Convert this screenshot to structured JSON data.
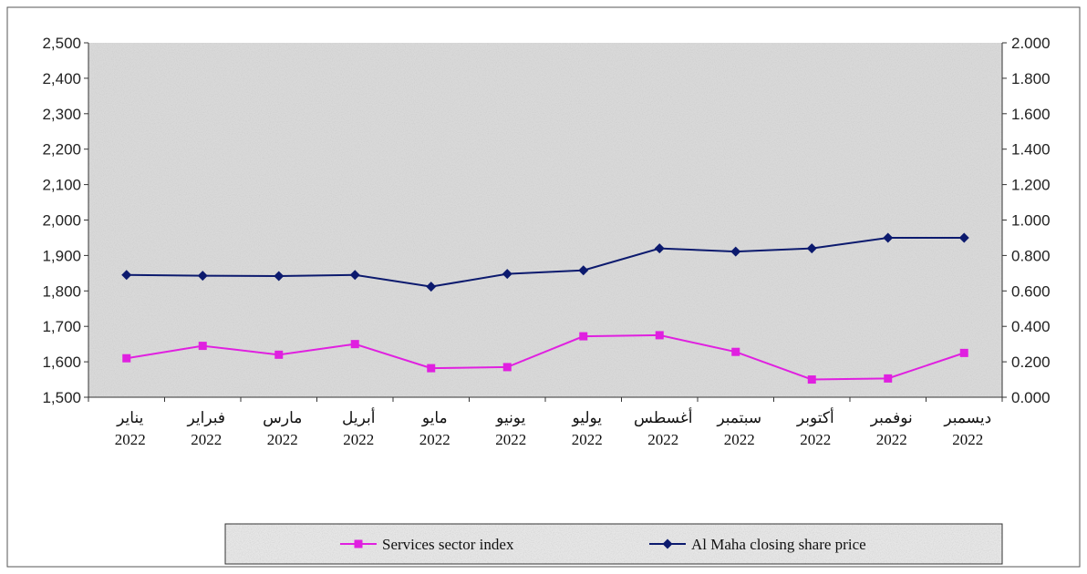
{
  "chart_data": {
    "type": "line",
    "categories": [
      [
        "يناير",
        "2022"
      ],
      [
        "فبراير",
        "2022"
      ],
      [
        "مارس",
        "2022"
      ],
      [
        "أبريل",
        "2022"
      ],
      [
        "مايو",
        "2022"
      ],
      [
        "يونيو",
        "2022"
      ],
      [
        "يوليو",
        "2022"
      ],
      [
        "أغسطس",
        "2022"
      ],
      [
        "سبتمبر",
        "2022"
      ],
      [
        "أكتوبر",
        "2022"
      ],
      [
        "نوفمبر",
        "2022"
      ],
      [
        "ديسمبر",
        "2022"
      ]
    ],
    "y_left": {
      "range": [
        1500,
        2500
      ],
      "ticks": [
        "1,500",
        "1,600",
        "1,700",
        "1,800",
        "1,900",
        "2,000",
        "2,100",
        "2,200",
        "2,300",
        "2,400",
        "2,500"
      ]
    },
    "y_right": {
      "range": [
        0,
        2
      ],
      "ticks": [
        "0.000",
        "0.200",
        "0.400",
        "0.600",
        "0.800",
        "1.000",
        "1.200",
        "1.400",
        "1.600",
        "1.800",
        "2.000"
      ]
    },
    "series": [
      {
        "name": "Services sector index",
        "axis": "left",
        "color": "#e020e0",
        "marker": "square",
        "values": [
          1610,
          1645,
          1620,
          1650,
          1582,
          1585,
          1672,
          1675,
          1628,
          1550,
          1553,
          1625
        ]
      },
      {
        "name": "Al Maha closing share price",
        "axis": "right",
        "color": "#0c1a6e",
        "marker": "diamond",
        "values": [
          0.69,
          0.686,
          0.684,
          0.69,
          0.624,
          0.696,
          0.716,
          0.84,
          0.822,
          0.84,
          0.9,
          0.9
        ]
      }
    ],
    "grid": false,
    "legend_position": "bottom",
    "plot_background": "#d9d9d9"
  }
}
